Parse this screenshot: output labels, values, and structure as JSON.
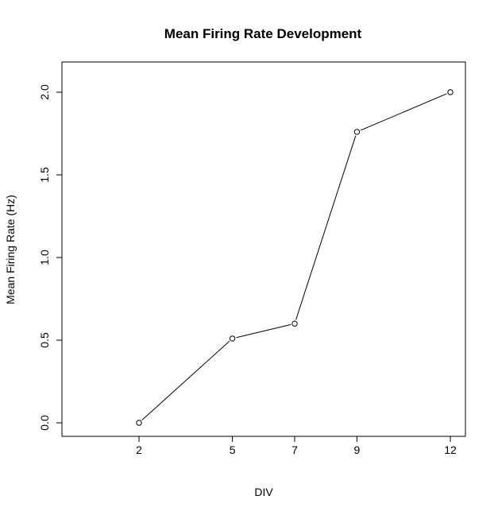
{
  "chart_data": {
    "type": "line",
    "title": "Mean Firing Rate Development",
    "xlabel": "DIV",
    "ylabel": "Mean Firing Rate (Hz)",
    "x": [
      2,
      5,
      7,
      9,
      12
    ],
    "series": [
      {
        "values": [
          0.0,
          0.51,
          0.6,
          1.76,
          2.0
        ]
      }
    ],
    "xticks": [
      2,
      5,
      7,
      9,
      12
    ],
    "yticks": [
      "0.0",
      "0.5",
      "1.0",
      "1.5",
      "2.0"
    ],
    "xlim": [
      0,
      12.5
    ],
    "ylim": [
      -0.08,
      2.2
    ],
    "marker": "open-circle",
    "line_color": "#000000",
    "grid": false,
    "legend": "none"
  }
}
